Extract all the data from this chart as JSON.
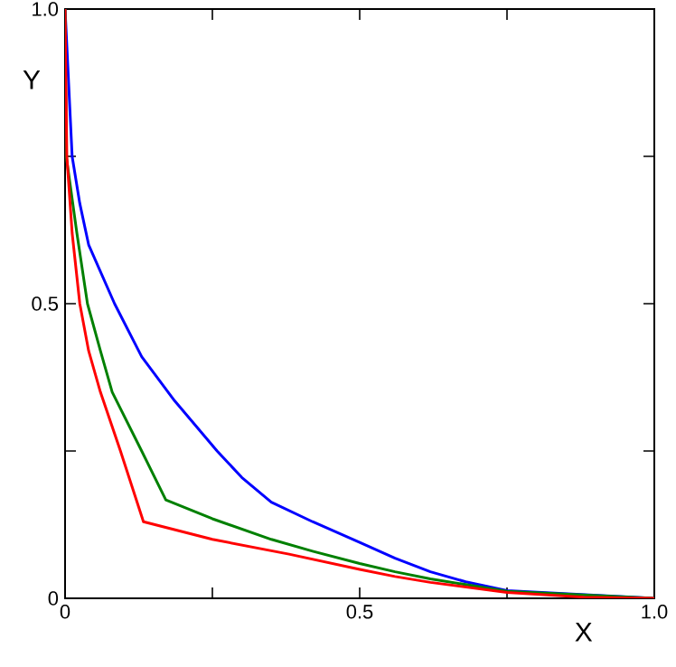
{
  "chart_data": {
    "type": "line",
    "xlabel": "X",
    "ylabel": "Y",
    "xlim": [
      0,
      1
    ],
    "ylim": [
      0,
      1
    ],
    "xticks": [
      0,
      {
        "value": 0.25,
        "label": null
      },
      0.5,
      {
        "value": 0.75,
        "label": null
      },
      {
        "value": 1,
        "label": "1.0"
      }
    ],
    "yticks": [
      0,
      {
        "value": 0.25,
        "label": null
      },
      0.5,
      {
        "value": 0.75,
        "label": null
      },
      {
        "value": 1,
        "label": "1.0"
      }
    ],
    "series": [
      {
        "color": "#0000ff",
        "x": [
          0,
          0.012,
          0.025,
          0.04,
          0.084,
          0.13,
          0.186,
          0.258,
          0.3,
          0.35,
          0.42,
          0.5,
          0.56,
          0.62,
          0.68,
          0.75,
          0.88,
          1
        ],
        "values": [
          1,
          0.75,
          0.67,
          0.6,
          0.5,
          0.41,
          0.335,
          0.25,
          0.205,
          0.163,
          0.13,
          0.095,
          0.068,
          0.045,
          0.028,
          0.013,
          null,
          0
        ]
      },
      {
        "color": "#008000",
        "x": [
          0,
          0.002,
          0.02,
          0.038,
          0.06,
          0.08,
          0.13,
          0.171,
          0.25,
          0.35,
          0.42,
          0.5,
          0.56,
          0.62,
          0.75,
          0.88,
          1
        ],
        "values": [
          1,
          0.75,
          0.62,
          0.5,
          0.42,
          0.35,
          0.25,
          0.167,
          0.135,
          0.1,
          0.08,
          0.059,
          0.045,
          0.033,
          0.012,
          null,
          0
        ]
      },
      {
        "color": "#ff0000",
        "x": [
          0,
          0.003,
          0.012,
          0.025,
          0.04,
          0.06,
          0.094,
          0.133,
          0.25,
          0.38,
          0.5,
          0.56,
          0.62,
          0.75,
          0.88,
          1
        ],
        "values": [
          1,
          0.75,
          0.62,
          0.5,
          0.42,
          0.35,
          0.25,
          0.13,
          0.1,
          0.075,
          0.049,
          0.037,
          0.027,
          0.01,
          0.002,
          0
        ]
      }
    ]
  }
}
